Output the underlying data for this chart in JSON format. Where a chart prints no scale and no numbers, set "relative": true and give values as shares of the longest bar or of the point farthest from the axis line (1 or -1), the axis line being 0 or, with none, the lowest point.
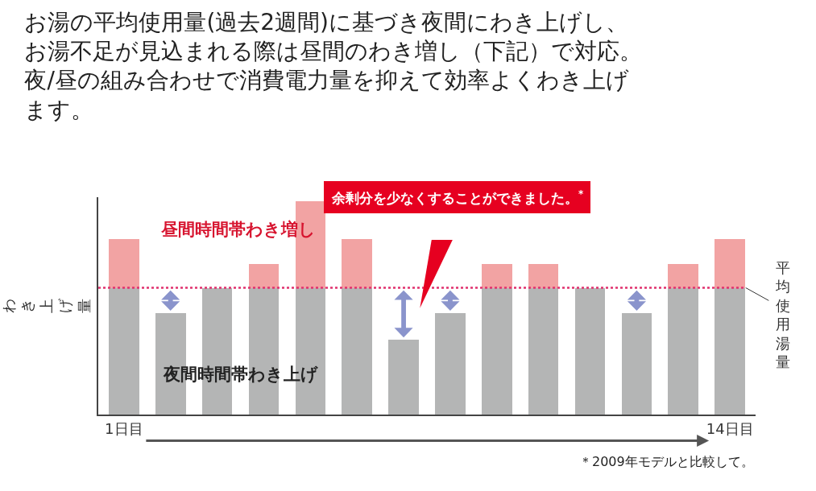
{
  "chart_data": {
    "type": "bar",
    "stacked": true,
    "relative": true,
    "title": "お湯の平均使用量(過去2週間)に基づき夜間にわき上げし、お湯不足が見込まれる際は昼間のわき増し（下記）で対応。夜/昼の組み合わせで消費電力量を抑えて効率よくわき上げます。",
    "ylabel": "わき上げ量",
    "categories": [
      "1日目",
      null,
      null,
      null,
      null,
      null,
      null,
      null,
      null,
      null,
      null,
      null,
      null,
      "14日目"
    ],
    "series": [
      {
        "name": "夜間時間帯わき上げ",
        "color": "#b4b5b5",
        "values": [
          0.595,
          0.475,
          0.595,
          0.595,
          0.595,
          0.595,
          0.35,
          0.475,
          0.595,
          0.595,
          0.595,
          0.475,
          0.595,
          0.595
        ]
      },
      {
        "name": "昼間時間帯わき増し",
        "color": "#f2a3a3",
        "values": [
          0.23,
          0,
          0,
          0.113,
          0.405,
          0.23,
          0,
          0,
          0.113,
          0.113,
          0,
          0,
          0.113,
          0.23
        ]
      }
    ],
    "ref_lines": [
      {
        "axis": "y",
        "value": 0.595,
        "label": "平均使用湯量",
        "color": "#e0326e",
        "line_style": "dotted"
      }
    ],
    "annotations": [
      "余剰分を少なくすることができました。$^{*}$",
      "＊2009年モデルと比較して。"
    ],
    "legend": false
  }
}
